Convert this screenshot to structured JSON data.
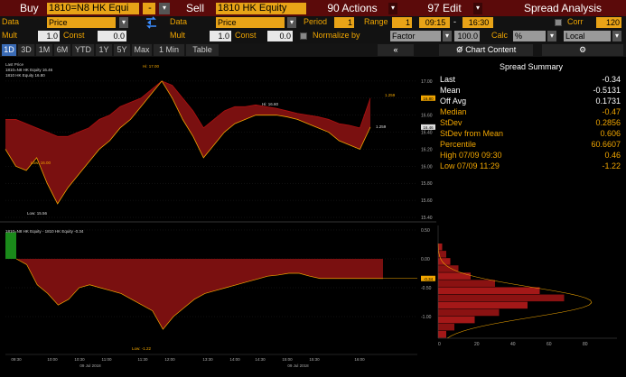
{
  "toolbar": {
    "buy_label": "Buy",
    "buy_value": "1810=N8 HK Equi",
    "buy_dash": "-",
    "sell_label": "Sell",
    "sell_value": "1810 HK Equity",
    "actions_label": "90 Actions",
    "edit_label": "97 Edit",
    "title": "Spread Analysis"
  },
  "row2": {
    "data1_label": "Data",
    "data1_value": "Price",
    "data2_label": "Data",
    "data2_value": "Price",
    "period_label": "Period",
    "period_value": "1",
    "range_label": "Range",
    "range_value": "1",
    "time_start": "09:15",
    "time_end": "16:30",
    "corr_label": "Corr",
    "corr_value": "120"
  },
  "row3": {
    "mult1_label": "Mult",
    "mult1_value": "1.0",
    "const1_label": "Const",
    "const1_value": "0.0",
    "mult2_label": "Mult",
    "mult2_value": "1.0",
    "const2_label": "Const",
    "const2_value": "0.0",
    "normalize_label": "Normalize by",
    "factor_value": "Factor",
    "factor_num": "100.0",
    "calc_label": "Calc",
    "calc_value": "%",
    "local_value": "Local"
  },
  "tabs": [
    {
      "label": "1D",
      "active": true
    },
    {
      "label": "3D",
      "active": false
    },
    {
      "label": "1M",
      "active": false
    },
    {
      "label": "6M",
      "active": false
    },
    {
      "label": "YTD",
      "active": false
    },
    {
      "label": "1Y",
      "active": false
    },
    {
      "label": "5Y",
      "active": false
    },
    {
      "label": "Max",
      "active": false
    },
    {
      "label": "1 Min",
      "active": false
    },
    {
      "label": "Table",
      "active": false
    }
  ],
  "chart_content_label": "Chart Content",
  "summary": {
    "title": "Spread Summary",
    "rows": [
      {
        "key": "Last",
        "value": "-0.34",
        "color": "#ffffff"
      },
      {
        "key": "Mean",
        "value": "-0.5131",
        "color": "#ffffff"
      },
      {
        "key": "Off Avg",
        "value": "0.1731",
        "color": "#ffffff"
      },
      {
        "key": "Median",
        "value": "-0.47",
        "color": "#f0a500"
      },
      {
        "key": "StDev",
        "value": "0.2856",
        "color": "#f0a500"
      },
      {
        "key": "StDev from Mean",
        "value": "0.606",
        "color": "#f0a500"
      },
      {
        "key": "Percentile",
        "value": "60.6607",
        "color": "#f0a500"
      },
      {
        "key": "High 07/09 09:30",
        "value": "0.46",
        "color": "#f0a500"
      },
      {
        "key": "Low 07/09 11:29",
        "value": "-1.22",
        "color": "#f0a500"
      }
    ]
  },
  "chart_data": [
    {
      "type": "area",
      "legend": [
        "Last Price",
        "1810=N8 HK Equity 16.46",
        "1810 HK Equity 16.80"
      ],
      "ylim": [
        15.4,
        17.2
      ],
      "yticks": [
        17.0,
        16.8,
        16.6,
        16.4,
        16.2,
        16.0,
        15.8,
        15.6,
        15.4
      ],
      "series": [
        {
          "name": "1810=N8 HK Equity",
          "color": "#f0a500",
          "values": [
            16.2,
            16.0,
            15.95,
            16.1,
            15.8,
            15.56,
            15.75,
            15.9,
            16.05,
            16.2,
            16.3,
            16.45,
            16.55,
            16.7,
            16.85,
            17.0,
            16.8,
            16.55,
            16.35,
            16.1,
            16.25,
            16.4,
            16.5,
            16.55,
            16.6,
            16.6,
            16.6,
            16.58,
            16.55,
            16.5,
            16.45,
            16.4,
            16.3,
            16.25,
            16.2,
            16.46
          ]
        },
        {
          "name": "1810 HK Equity",
          "color": "#b01010",
          "values": [
            16.55,
            16.55,
            16.5,
            16.45,
            16.4,
            16.35,
            16.35,
            16.4,
            16.45,
            16.55,
            16.6,
            16.7,
            16.75,
            16.8,
            16.9,
            17.0,
            16.95,
            16.8,
            16.65,
            16.45,
            16.55,
            16.65,
            16.7,
            16.7,
            16.72,
            16.7,
            16.68,
            16.65,
            16.62,
            16.6,
            16.58,
            16.55,
            16.5,
            16.48,
            16.45,
            16.8
          ]
        }
      ],
      "labels": {
        "high": "Hi: 17.00",
        "low": "Low: 15.56",
        "mid": "Hi: 16.60",
        "mid_low": "Low: 16.00",
        "last_a": "16.46",
        "last_b": "16.80",
        "tag_a": "1.259",
        "tag_b": "1.259"
      }
    },
    {
      "type": "area",
      "legend": [
        "1810=N8 HK Equity - 1810 HK Equity -0.34"
      ],
      "ylim": [
        -1.5,
        0.5
      ],
      "yticks": [
        0.5,
        0.0,
        -0.5,
        -1.0
      ],
      "values": [
        0.46,
        -0.1,
        -0.45,
        -0.6,
        -0.8,
        -0.7,
        -0.5,
        -0.45,
        -0.5,
        -0.55,
        -0.6,
        -0.7,
        -0.8,
        -0.9,
        -1.22,
        -1.0,
        -0.85,
        -0.7,
        -0.6,
        -0.55,
        -0.5,
        -0.45,
        -0.4,
        -0.35,
        -0.3,
        -0.28,
        -0.25,
        -0.25,
        -0.3,
        -0.34,
        -0.34,
        -0.34,
        -0.34,
        -0.34,
        -0.34,
        -0.34
      ],
      "labels": {
        "low": "Low: -1.22",
        "last": "-0.34"
      },
      "xticks": [
        "09:30",
        "10:00",
        "10:30",
        "11:00",
        "11:30",
        "12:00",
        "13:30",
        "14:00",
        "14:30",
        "15:00",
        "15:30",
        "16:00"
      ],
      "xdate": "09 Jul 2018"
    },
    {
      "type": "bar",
      "orientation": "horizontal",
      "xticks": [
        "0",
        "20",
        "40",
        "60",
        "80"
      ],
      "values": [
        2,
        4,
        6,
        10,
        16,
        28,
        50,
        62,
        44,
        30,
        18,
        8,
        4
      ]
    }
  ]
}
